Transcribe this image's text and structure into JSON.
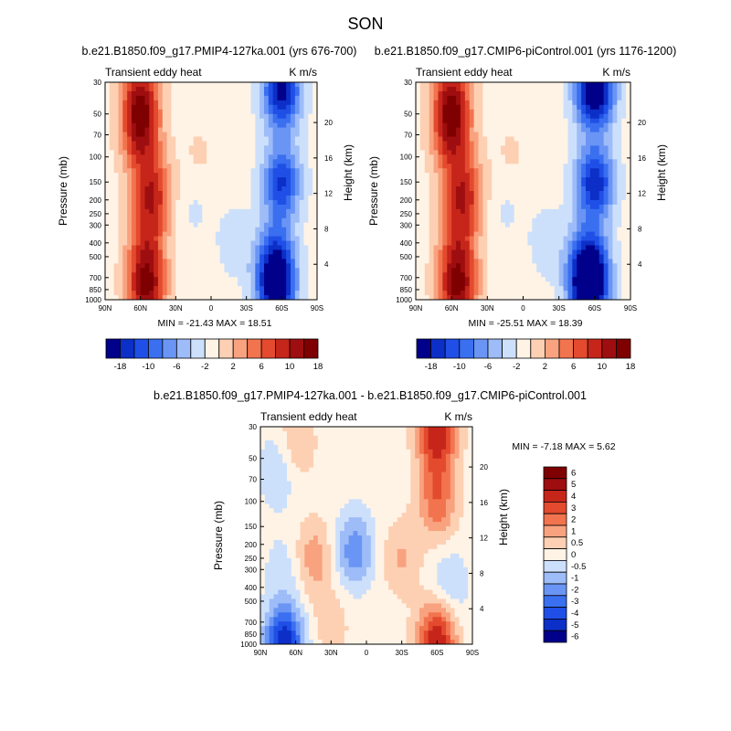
{
  "page": {
    "title": "SON"
  },
  "palette": {
    "colors": [
      "#00008b",
      "#0c2fc7",
      "#1f4fe6",
      "#3a6ff0",
      "#6a95f4",
      "#9dbcf8",
      "#cde0fb",
      "#fff3e6",
      "#fdd0b3",
      "#f9a27f",
      "#f2744f",
      "#e34a2e",
      "#c6251a",
      "#9e0e10",
      "#7f0000"
    ],
    "neutral": "#ffffff"
  },
  "chart_data": [
    {
      "type": "heatmap",
      "title": "b.e21.B1850.f09_g17.PMIP4-127ka.001 (yrs 676-700)",
      "left_label": "Transient eddy heat",
      "right_label": "K m/s",
      "ylabel": "Pressure (mb)",
      "ylabel_right": "Height (km)",
      "x_ticks": [
        "90N",
        "60N",
        "30N",
        "0",
        "30S",
        "60S",
        "90S"
      ],
      "y_ticks": [
        30,
        50,
        70,
        100,
        150,
        200,
        250,
        300,
        400,
        500,
        700,
        850,
        1000
      ],
      "y_scale": "log",
      "height_ticks": [
        20,
        16,
        12,
        8,
        4
      ],
      "stats": "MIN = -21.43  MAX = 18.51",
      "blobs": [
        {
          "lat": 60,
          "p": 40,
          "value": 16
        },
        {
          "lat": 60,
          "p": 75,
          "value": 12
        },
        {
          "lat": 50,
          "p": 180,
          "value": 14
        },
        {
          "lat": 55,
          "p": 400,
          "value": 10
        },
        {
          "lat": 55,
          "p": 850,
          "value": 18
        },
        {
          "lat": 10,
          "p": 100,
          "value": 2
        },
        {
          "lat": -60,
          "p": 35,
          "value": -20
        },
        {
          "lat": -60,
          "p": 150,
          "value": -16
        },
        {
          "lat": -55,
          "p": 500,
          "value": -12
        },
        {
          "lat": -55,
          "p": 850,
          "value": -21
        },
        {
          "lat": 15,
          "p": 220,
          "value": -2
        },
        {
          "lat": -20,
          "p": 400,
          "value": -3
        }
      ]
    },
    {
      "type": "heatmap",
      "title": "b.e21.B1850.f09_g17.CMIP6-piControl.001 (yrs 1176-1200)",
      "left_label": "Transient eddy heat",
      "right_label": "K m/s",
      "ylabel": "Pressure (mb)",
      "ylabel_right": "Height (km)",
      "x_ticks": [
        "90N",
        "60N",
        "30N",
        "0",
        "30S",
        "60S",
        "90S"
      ],
      "y_ticks": [
        30,
        50,
        70,
        100,
        150,
        200,
        250,
        300,
        400,
        500,
        700,
        850,
        1000
      ],
      "y_scale": "log",
      "height_ticks": [
        20,
        16,
        12,
        8,
        4
      ],
      "stats": "MIN = -25.51  MAX = 18.39",
      "blobs": [
        {
          "lat": 60,
          "p": 40,
          "value": 16
        },
        {
          "lat": 60,
          "p": 75,
          "value": 12
        },
        {
          "lat": 50,
          "p": 180,
          "value": 14
        },
        {
          "lat": 55,
          "p": 400,
          "value": 10
        },
        {
          "lat": 55,
          "p": 850,
          "value": 18
        },
        {
          "lat": 10,
          "p": 100,
          "value": 2
        },
        {
          "lat": -60,
          "p": 35,
          "value": -24
        },
        {
          "lat": -60,
          "p": 150,
          "value": -18
        },
        {
          "lat": -55,
          "p": 500,
          "value": -13
        },
        {
          "lat": -55,
          "p": 850,
          "value": -25
        },
        {
          "lat": 15,
          "p": 220,
          "value": -2
        },
        {
          "lat": -20,
          "p": 400,
          "value": -3
        }
      ]
    },
    {
      "type": "heatmap",
      "title": "b.e21.B1850.f09_g17.PMIP4-127ka.001 - b.e21.B1850.f09_g17.CMIP6-piControl.001",
      "left_label": "Transient eddy heat",
      "right_label": "K m/s",
      "ylabel": "Pressure (mb)",
      "ylabel_right": "Height (km)",
      "x_ticks": [
        "90N",
        "60N",
        "30N",
        "0",
        "30S",
        "60S",
        "90S"
      ],
      "y_ticks": [
        30,
        50,
        70,
        100,
        150,
        200,
        250,
        300,
        400,
        500,
        700,
        850,
        1000
      ],
      "y_scale": "log",
      "height_ticks": [
        20,
        16,
        12,
        8,
        4
      ],
      "stats": "MIN = -7.18  MAX = 5.62",
      "blobs": [
        {
          "lat": 75,
          "p": 60,
          "value": -1.5
        },
        {
          "lat": 60,
          "p": 40,
          "value": 1.5
        },
        {
          "lat": 45,
          "p": 250,
          "value": 2
        },
        {
          "lat": 70,
          "p": 300,
          "value": -1
        },
        {
          "lat": 10,
          "p": 220,
          "value": -3
        },
        {
          "lat": 30,
          "p": 700,
          "value": 1
        },
        {
          "lat": -30,
          "p": 250,
          "value": 1.5
        },
        {
          "lat": -60,
          "p": 35,
          "value": 5
        },
        {
          "lat": -60,
          "p": 100,
          "value": 3
        },
        {
          "lat": -70,
          "p": 400,
          "value": -1.5
        },
        {
          "lat": -60,
          "p": 900,
          "value": 5
        },
        {
          "lat": 70,
          "p": 980,
          "value": -6
        }
      ]
    }
  ],
  "colorbar_top": {
    "labels": [
      "-18",
      "-10",
      "-6",
      "-2",
      "2",
      "6",
      "10",
      "18"
    ]
  },
  "colorbar_diff": {
    "labels": [
      "6",
      "5",
      "4",
      "3",
      "2",
      "1",
      "0.5",
      "0",
      "-0.5",
      "-1",
      "-2",
      "-3",
      "-4",
      "-5",
      "-6"
    ]
  }
}
